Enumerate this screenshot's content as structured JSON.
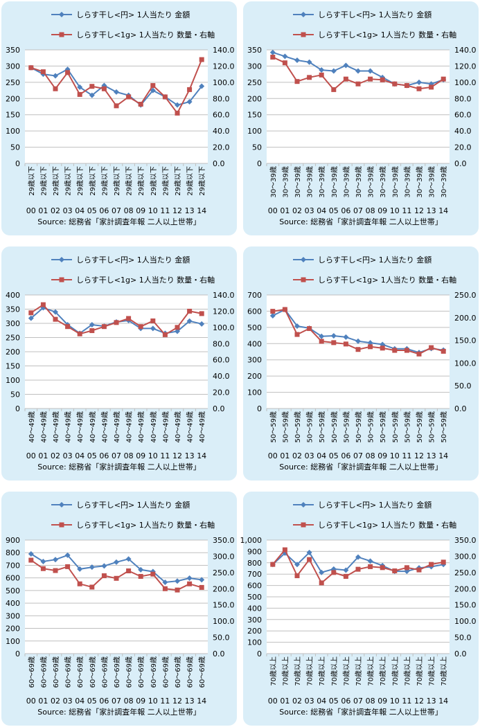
{
  "legend": {
    "amount": "しらす干し<円> 1人当たり 金額",
    "quantity": "しらす干し<1g> 1人当たり 数量・右軸"
  },
  "source": "Source: 総務省「家計調査年報 二人以上世帯」",
  "colors": {
    "amount": "#4f81bd",
    "quantity": "#c0504d",
    "grid": "#bfbfbf",
    "panel": "#daeef8"
  },
  "chart_data": [
    {
      "type": "line",
      "age_label": "29歳以下",
      "x": [
        "00",
        "01",
        "02",
        "03",
        "04",
        "05",
        "06",
        "07",
        "08",
        "09",
        "10",
        "11",
        "12",
        "13",
        "14"
      ],
      "left_ticks": [
        "0",
        "50",
        "100",
        "150",
        "200",
        "250",
        "300",
        "350"
      ],
      "right_ticks": [
        "0.0",
        "20.0",
        "40.0",
        "60.0",
        "80.0",
        "100.0",
        "120.0",
        "140.0"
      ],
      "ylim_left": [
        0,
        350
      ],
      "ylim_right": [
        0,
        140
      ],
      "series": [
        {
          "name": "しらす干し<円> 1人当たり 金額",
          "axis": "left",
          "values": [
            295,
            275,
            270,
            290,
            235,
            210,
            240,
            220,
            210,
            180,
            225,
            205,
            180,
            190,
            238
          ]
        },
        {
          "name": "しらす干し<1g> 1人当たり 数量・右軸",
          "axis": "right",
          "values": [
            118,
            113,
            92,
            112,
            85,
            95,
            92,
            71,
            82,
            73,
            96,
            82,
            62,
            91,
            128
          ]
        }
      ]
    },
    {
      "type": "line",
      "age_label": "30～39歳",
      "x": [
        "00",
        "01",
        "02",
        "03",
        "04",
        "05",
        "06",
        "07",
        "08",
        "09",
        "10",
        "11",
        "12",
        "13",
        "14"
      ],
      "left_ticks": [
        "0",
        "50",
        "100",
        "150",
        "200",
        "250",
        "300",
        "350"
      ],
      "right_ticks": [
        "0.0",
        "20.0",
        "40.0",
        "60.0",
        "80.0",
        "100.0",
        "120.0",
        "140.0"
      ],
      "ylim_left": [
        0,
        350
      ],
      "ylim_right": [
        0,
        140
      ],
      "series": [
        {
          "name": "しらす干し<円> 1人当たり 金額",
          "axis": "left",
          "values": [
            342,
            330,
            318,
            312,
            288,
            285,
            302,
            285,
            285,
            265,
            245,
            240,
            250,
            245,
            258
          ]
        },
        {
          "name": "しらす干し<1g> 1人当たり 数量・右軸",
          "axis": "right",
          "values": [
            131,
            124,
            101,
            106,
            109,
            91,
            104,
            98,
            104,
            103,
            98,
            96,
            92,
            94,
            104
          ]
        }
      ]
    },
    {
      "type": "line",
      "age_label": "40～49歳",
      "x": [
        "00",
        "01",
        "02",
        "03",
        "04",
        "05",
        "06",
        "07",
        "08",
        "09",
        "10",
        "11",
        "12",
        "13",
        "14"
      ],
      "left_ticks": [
        "0",
        "50",
        "100",
        "150",
        "200",
        "250",
        "300",
        "350",
        "400"
      ],
      "right_ticks": [
        "0.0",
        "20.0",
        "40.0",
        "60.0",
        "80.0",
        "100.0",
        "120.0",
        "140.0"
      ],
      "ylim_left": [
        0,
        400
      ],
      "ylim_right": [
        0,
        140
      ],
      "series": [
        {
          "name": "しらす干し<円> 1人当たり 金額",
          "axis": "left",
          "values": [
            318,
            355,
            340,
            295,
            265,
            295,
            290,
            305,
            310,
            282,
            282,
            265,
            272,
            308,
            298
          ]
        },
        {
          "name": "しらす干し<1g> 1人当たり 数量・右軸",
          "axis": "right",
          "values": [
            118,
            128,
            110,
            101,
            92,
            96,
            101,
            106,
            111,
            101,
            108,
            91,
            100,
            120,
            117
          ]
        }
      ]
    },
    {
      "type": "line",
      "age_label": "50～59歳",
      "x": [
        "00",
        "01",
        "02",
        "03",
        "04",
        "05",
        "06",
        "07",
        "08",
        "09",
        "10",
        "11",
        "12",
        "13",
        "14"
      ],
      "left_ticks": [
        "0",
        "100",
        "200",
        "300",
        "400",
        "500",
        "600",
        "700"
      ],
      "right_ticks": [
        "0.0",
        "50.0",
        "100.0",
        "150.0",
        "200.0",
        "250.0"
      ],
      "ylim_left": [
        0,
        700
      ],
      "ylim_right": [
        0,
        250
      ],
      "series": [
        {
          "name": "しらす干し<円> 1人当たり 金額",
          "axis": "left",
          "values": [
            572,
            610,
            508,
            495,
            445,
            448,
            440,
            415,
            405,
            395,
            368,
            368,
            345,
            370,
            360
          ]
        },
        {
          "name": "しらす干し<1g> 1人当たり 数量・右軸",
          "axis": "right",
          "values": [
            214,
            218,
            163,
            176,
            148,
            145,
            142,
            130,
            136,
            133,
            128,
            128,
            120,
            134,
            126
          ]
        }
      ]
    },
    {
      "type": "line",
      "age_label": "60～69歳",
      "x": [
        "00",
        "01",
        "02",
        "03",
        "04",
        "05",
        "06",
        "07",
        "08",
        "09",
        "10",
        "11",
        "12",
        "13",
        "14"
      ],
      "left_ticks": [
        "0",
        "100",
        "200",
        "300",
        "400",
        "500",
        "600",
        "700",
        "800",
        "900"
      ],
      "right_ticks": [
        "0.0",
        "50.0",
        "100.0",
        "150.0",
        "200.0",
        "250.0",
        "300.0",
        "350.0"
      ],
      "ylim_left": [
        0,
        900
      ],
      "ylim_right": [
        0,
        350
      ],
      "series": [
        {
          "name": "しらす干し<円> 1人当たり 金額",
          "axis": "left",
          "values": [
            790,
            730,
            745,
            780,
            670,
            685,
            695,
            725,
            750,
            665,
            650,
            565,
            575,
            598,
            585
          ]
        },
        {
          "name": "しらす干し<1g> 1人当たり 数量・右軸",
          "axis": "right",
          "values": [
            288,
            262,
            256,
            268,
            215,
            205,
            240,
            232,
            255,
            238,
            245,
            200,
            196,
            215,
            204
          ]
        }
      ]
    },
    {
      "type": "line",
      "age_label": "70歳以上",
      "x": [
        "00",
        "01",
        "02",
        "03",
        "04",
        "05",
        "06",
        "07",
        "08",
        "09",
        "10",
        "11",
        "12",
        "13",
        "14"
      ],
      "left_ticks": [
        "0",
        "100",
        "200",
        "300",
        "400",
        "500",
        "600",
        "700",
        "800",
        "900",
        "1,000"
      ],
      "right_ticks": [
        "0.0",
        "50.0",
        "100.0",
        "150.0",
        "200.0",
        "250.0",
        "300.0",
        "350.0"
      ],
      "ylim_left": [
        0,
        1000
      ],
      "ylim_right": [
        0,
        350
      ],
      "series": [
        {
          "name": "しらす干し<円> 1人当たり 金額",
          "axis": "left",
          "values": [
            785,
            885,
            785,
            890,
            715,
            745,
            735,
            850,
            815,
            775,
            725,
            725,
            755,
            765,
            785
          ]
        },
        {
          "name": "しらす干し<1g> 1人当たり 数量・右軸",
          "axis": "right",
          "values": [
            275,
            320,
            240,
            290,
            218,
            250,
            238,
            260,
            268,
            265,
            255,
            265,
            258,
            275,
            282
          ]
        }
      ]
    }
  ]
}
